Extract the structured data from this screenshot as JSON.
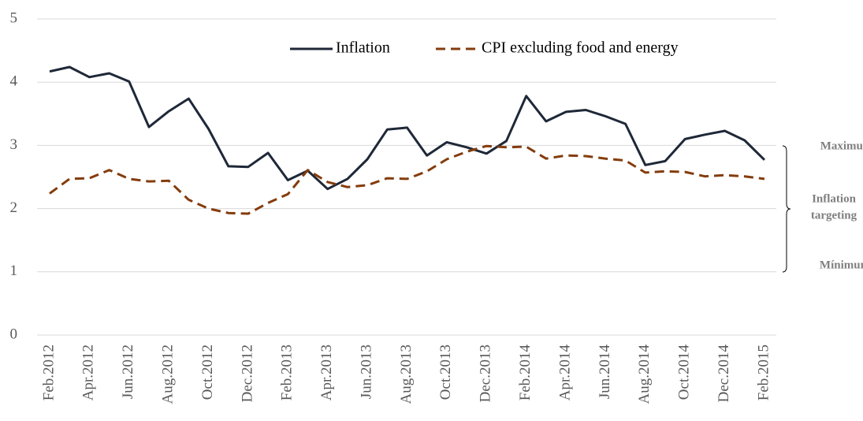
{
  "chart_data": {
    "type": "line",
    "categories": [
      "Feb.2012",
      null,
      "Apr.2012",
      null,
      "Jun.2012",
      null,
      "Aug.2012",
      null,
      "Oct.2012",
      null,
      "Dec.2012",
      null,
      "Feb.2013",
      null,
      "Apr.2013",
      null,
      "Jun.2013",
      null,
      "Aug.2013",
      null,
      "Oct.2013",
      null,
      "Dec.2013",
      null,
      "Feb.2014",
      null,
      "Apr.2014",
      null,
      "Jun.2014",
      null,
      "Aug.2014",
      null,
      "Oct.2014",
      null,
      "Dec.2014",
      null,
      "Feb.2015"
    ],
    "series": [
      {
        "name": "Inflation",
        "color": "#1f2838",
        "dashed": false,
        "values": [
          4.17,
          4.24,
          4.08,
          4.14,
          4.01,
          3.29,
          3.54,
          3.74,
          3.26,
          2.67,
          2.66,
          2.88,
          2.45,
          2.6,
          2.31,
          2.47,
          2.78,
          3.25,
          3.28,
          2.84,
          3.05,
          2.97,
          2.87,
          3.07,
          3.78,
          3.38,
          3.53,
          3.56,
          3.46,
          3.34,
          2.69,
          2.75,
          3.1,
          3.17,
          3.23,
          3.08,
          2.77
        ]
      },
      {
        "name": "CPI excluding food and energy",
        "color": "#843c0c",
        "dashed": true,
        "values": [
          2.24,
          2.47,
          2.48,
          2.61,
          2.47,
          2.43,
          2.44,
          2.14,
          2.0,
          1.93,
          1.92,
          2.09,
          2.23,
          2.61,
          2.42,
          2.34,
          2.37,
          2.48,
          2.47,
          2.59,
          2.78,
          2.9,
          2.99,
          2.97,
          2.98,
          2.79,
          2.84,
          2.83,
          2.79,
          2.76,
          2.57,
          2.59,
          2.58,
          2.51,
          2.53,
          2.51,
          2.47
        ]
      }
    ],
    "ylim": [
      0,
      5
    ],
    "yticks": [
      0,
      1,
      2,
      3,
      4,
      5
    ],
    "grid": true,
    "legend": "top",
    "bracket": {
      "top": "Maximun",
      "middle": [
        "Inflation",
        "targeting"
      ],
      "bottom": "Mínimum"
    }
  }
}
